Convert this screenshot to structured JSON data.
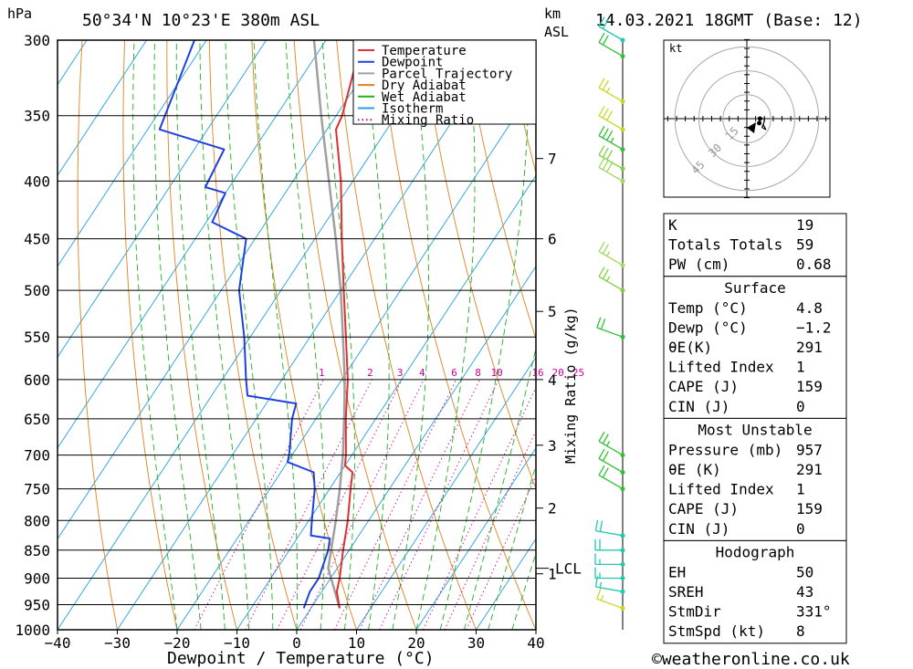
{
  "header": {
    "location": "50°34'N  10°23'E  380m  ASL",
    "datetime": "14.03.2021  18GMT  (Base: 12)",
    "hpa_unit": "hPa",
    "km_unit": "km",
    "asl_unit": "ASL"
  },
  "legend": [
    {
      "label": "Temperature",
      "color": "#e03030",
      "style": "solid"
    },
    {
      "label": "Dewpoint",
      "color": "#2040e0",
      "style": "solid"
    },
    {
      "label": "Parcel Trajectory",
      "color": "#a0a0a0",
      "style": "solid"
    },
    {
      "label": "Dry Adiabat",
      "color": "#e08020",
      "style": "solid"
    },
    {
      "label": "Wet Adiabat",
      "color": "#20b020",
      "style": "solid"
    },
    {
      "label": "Isotherm",
      "color": "#20a0e0",
      "style": "solid"
    },
    {
      "label": "Mixing Ratio",
      "color": "#cc0099",
      "style": "dotted"
    }
  ],
  "chart_data": {
    "type": "skew-t",
    "xlabel": "Dewpoint / Temperature (°C)",
    "ylabel_right": "Mixing Ratio (g/kg)",
    "x_ticks": [
      -40,
      -30,
      -20,
      -10,
      0,
      10,
      20,
      30,
      40
    ],
    "x_tick_labels": [
      "−40",
      "−30",
      "−20",
      "−10",
      "0",
      "10",
      "20",
      "30",
      "40"
    ],
    "pressure_levels": [
      300,
      350,
      400,
      450,
      500,
      550,
      600,
      650,
      700,
      750,
      800,
      850,
      900,
      950,
      1000
    ],
    "km_ticks": [
      {
        "km": 7,
        "p": 382
      },
      {
        "km": 6,
        "p": 450
      },
      {
        "km": 5,
        "p": 522
      },
      {
        "km": 4,
        "p": 600
      },
      {
        "km": 3,
        "p": 686
      },
      {
        "km": 2,
        "p": 780
      },
      {
        "km": 1,
        "p": 892
      }
    ],
    "lcl": {
      "label": "LCL",
      "p": 882
    },
    "mixing_ratio_labels": [
      "1",
      "2",
      "3",
      "4",
      "6",
      "8",
      "10",
      "16",
      "20",
      "25"
    ],
    "temperature": [
      {
        "p": 957,
        "t": 4.8
      },
      {
        "p": 925,
        "t": 2.5
      },
      {
        "p": 900,
        "t": 1.5
      },
      {
        "p": 850,
        "t": -1.0
      },
      {
        "p": 800,
        "t": -3.5
      },
      {
        "p": 750,
        "t": -6.5
      },
      {
        "p": 725,
        "t": -8.0
      },
      {
        "p": 715,
        "t": -10.0
      },
      {
        "p": 700,
        "t": -11.0
      },
      {
        "p": 650,
        "t": -15.0
      },
      {
        "p": 600,
        "t": -19.0
      },
      {
        "p": 550,
        "t": -24.0
      },
      {
        "p": 500,
        "t": -29.5
      },
      {
        "p": 450,
        "t": -35.5
      },
      {
        "p": 400,
        "t": -42.0
      },
      {
        "p": 360,
        "t": -48.5
      },
      {
        "p": 350,
        "t": -49.0
      },
      {
        "p": 300,
        "t": -54.0
      }
    ],
    "dewpoint": [
      {
        "p": 957,
        "t": -1.2
      },
      {
        "p": 925,
        "t": -2.0
      },
      {
        "p": 900,
        "t": -2.0
      },
      {
        "p": 850,
        "t": -3.5
      },
      {
        "p": 830,
        "t": -4.5
      },
      {
        "p": 825,
        "t": -8.0
      },
      {
        "p": 800,
        "t": -9.5
      },
      {
        "p": 750,
        "t": -12.5
      },
      {
        "p": 725,
        "t": -14.5
      },
      {
        "p": 710,
        "t": -20.0
      },
      {
        "p": 700,
        "t": -20.5
      },
      {
        "p": 650,
        "t": -24.0
      },
      {
        "p": 630,
        "t": -25.0
      },
      {
        "p": 620,
        "t": -34.0
      },
      {
        "p": 600,
        "t": -36.0
      },
      {
        "p": 550,
        "t": -41.0
      },
      {
        "p": 500,
        "t": -47.0
      },
      {
        "p": 450,
        "t": -51.5
      },
      {
        "p": 435,
        "t": -59.0
      },
      {
        "p": 410,
        "t": -60.0
      },
      {
        "p": 405,
        "t": -64.0
      },
      {
        "p": 375,
        "t": -65.0
      },
      {
        "p": 360,
        "t": -78.0
      },
      {
        "p": 300,
        "t": -82.0
      }
    ],
    "parcel": [
      {
        "p": 957,
        "t": 4.8
      },
      {
        "p": 882,
        "t": -1.5
      },
      {
        "p": 850,
        "t": -3.0
      },
      {
        "p": 800,
        "t": -5.5
      },
      {
        "p": 750,
        "t": -8.3
      },
      {
        "p": 700,
        "t": -11.5
      },
      {
        "p": 650,
        "t": -15.3
      },
      {
        "p": 600,
        "t": -19.5
      },
      {
        "p": 550,
        "t": -24.5
      },
      {
        "p": 500,
        "t": -30.0
      },
      {
        "p": 450,
        "t": -36.5
      },
      {
        "p": 400,
        "t": -44.0
      },
      {
        "p": 350,
        "t": -52.5
      },
      {
        "p": 300,
        "t": -62.0
      }
    ],
    "wind_barbs": [
      {
        "p": 957,
        "dir": 290,
        "kt": 15,
        "color": "#c8d820"
      },
      {
        "p": 925,
        "dir": 280,
        "kt": 15,
        "color": "#20c8b0"
      },
      {
        "p": 900,
        "dir": 270,
        "kt": 15,
        "color": "#20c8b0"
      },
      {
        "p": 875,
        "dir": 270,
        "kt": 15,
        "color": "#20c8b0"
      },
      {
        "p": 850,
        "dir": 270,
        "kt": 20,
        "color": "#20c8b0"
      },
      {
        "p": 825,
        "dir": 280,
        "kt": 20,
        "color": "#20c8b0"
      },
      {
        "p": 750,
        "dir": 300,
        "kt": 20,
        "color": "#30c030"
      },
      {
        "p": 725,
        "dir": 300,
        "kt": 20,
        "color": "#30c030"
      },
      {
        "p": 700,
        "dir": 300,
        "kt": 25,
        "color": "#30c030"
      },
      {
        "p": 550,
        "dir": 290,
        "kt": 20,
        "color": "#30c030"
      },
      {
        "p": 500,
        "dir": 300,
        "kt": 25,
        "color": "#80d040"
      },
      {
        "p": 475,
        "dir": 300,
        "kt": 25,
        "color": "#a0d860"
      },
      {
        "p": 400,
        "dir": 300,
        "kt": 30,
        "color": "#a0d860"
      },
      {
        "p": 390,
        "dir": 300,
        "kt": 30,
        "color": "#80d040"
      },
      {
        "p": 375,
        "dir": 300,
        "kt": 35,
        "color": "#30c030"
      },
      {
        "p": 360,
        "dir": 300,
        "kt": 30,
        "color": "#c8d820"
      },
      {
        "p": 340,
        "dir": 300,
        "kt": 25,
        "color": "#c8d820"
      },
      {
        "p": 310,
        "dir": 300,
        "kt": 20,
        "color": "#30c030"
      },
      {
        "p": 300,
        "dir": 300,
        "kt": 20,
        "color": "#20c8b0"
      }
    ],
    "hodograph": {
      "unit": "kt",
      "rings": [
        15,
        30,
        45
      ]
    }
  },
  "indices": {
    "block1": [
      {
        "label": "K",
        "value": "19"
      },
      {
        "label": "Totals Totals",
        "value": "59"
      },
      {
        "label": "PW (cm)",
        "value": "0.68"
      }
    ],
    "surface_title": "Surface",
    "surface": [
      {
        "label": "Temp (°C)",
        "value": "4.8"
      },
      {
        "label": "Dewp (°C)",
        "value": "−1.2"
      },
      {
        "label": "θE(K)",
        "value": "291"
      },
      {
        "label": "Lifted Index",
        "value": "1"
      },
      {
        "label": "CAPE (J)",
        "value": "159"
      },
      {
        "label": "CIN (J)",
        "value": "0"
      }
    ],
    "mu_title": "Most Unstable",
    "mu": [
      {
        "label": "Pressure (mb)",
        "value": "957"
      },
      {
        "label": "θE (K)",
        "value": "291"
      },
      {
        "label": "Lifted Index",
        "value": "1"
      },
      {
        "label": "CAPE (J)",
        "value": "159"
      },
      {
        "label": "CIN (J)",
        "value": "0"
      }
    ],
    "hodo_title": "Hodograph",
    "hodo": [
      {
        "label": "EH",
        "value": "50"
      },
      {
        "label": "SREH",
        "value": "43"
      },
      {
        "label": "StmDir",
        "value": "331°"
      },
      {
        "label": "StmSpd (kt)",
        "value": "8"
      }
    ]
  },
  "footer": {
    "credit": "©weatheronline.co.uk"
  }
}
